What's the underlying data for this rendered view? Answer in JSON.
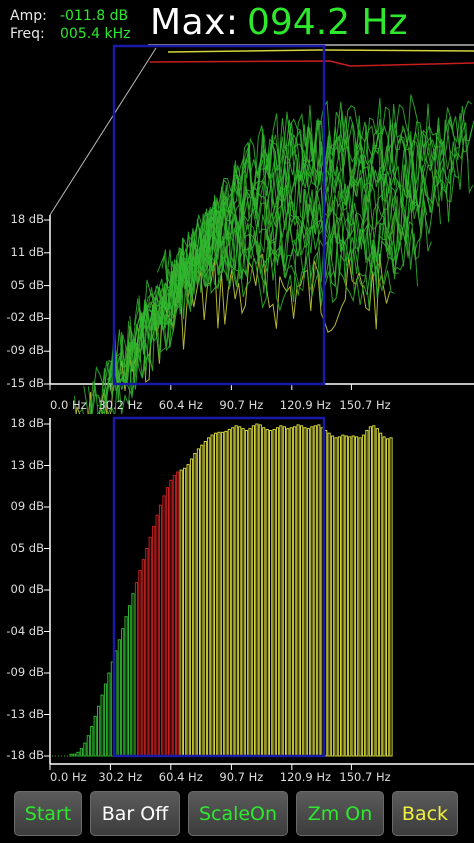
{
  "header": {
    "amp_label": "Amp:",
    "amp_value": "-011.8 dB",
    "freq_label": "Freq:",
    "freq_value": "005.4 kHz",
    "max_label": "Max:",
    "max_value": "094.2 Hz"
  },
  "top_chart": {
    "y_ticks": [
      "18 dB",
      "11 dB",
      "05 dB",
      "-02 dB",
      "-09 dB",
      "-15 dB"
    ],
    "x_ticks": [
      "0.0 Hz",
      "30.2 Hz",
      "60.4 Hz",
      "90.7 Hz",
      "120.9 Hz",
      "150.7 Hz"
    ]
  },
  "bottom_chart": {
    "y_ticks": [
      "18 dB",
      "13 dB",
      "09 dB",
      "05 dB",
      "00 dB",
      "-04 dB",
      "-09 dB",
      "-13 dB",
      "-18 dB"
    ],
    "x_ticks": [
      "0.0 Hz",
      "30.2 Hz",
      "60.4 Hz",
      "90.7 Hz",
      "120.9 Hz",
      "150.7 Hz"
    ]
  },
  "chart_data": {
    "type": "bar",
    "x_unit": "Hz",
    "y_unit": "dB",
    "ylim": [
      -18,
      18
    ],
    "xlim": [
      0,
      170
    ],
    "bins_start_hz": 10,
    "bin_step_hz": 1.72,
    "values": [
      -17.8,
      -17.8,
      -17.6,
      -17.2,
      -16.6,
      -15.8,
      -14.8,
      -13.7,
      -12.6,
      -11.4,
      -10.2,
      -9.0,
      -7.8,
      -6.6,
      -5.4,
      -4.2,
      -2.9,
      -1.7,
      -0.4,
      0.8,
      2.1,
      3.3,
      4.5,
      5.7,
      6.9,
      8.1,
      9.2,
      10.2,
      11.1,
      11.9,
      12.4,
      12.8,
      13.0,
      13.2,
      13.6,
      14.2,
      14.8,
      15.3,
      15.7,
      16.1,
      16.5,
      16.8,
      17.0,
      17.1,
      17.1,
      17.2,
      17.4,
      17.6,
      17.8,
      17.7,
      17.5,
      17.3,
      17.5,
      17.8,
      18.0,
      17.9,
      17.6,
      17.4,
      17.3,
      17.4,
      17.6,
      17.8,
      17.7,
      17.5,
      17.6,
      17.7,
      17.9,
      17.8,
      17.6,
      17.5,
      17.7,
      17.8,
      17.9,
      17.6,
      17.3,
      17.0,
      16.7,
      16.5,
      16.6,
      16.8,
      16.7,
      16.6,
      16.7,
      16.6,
      16.5,
      16.8,
      17.3,
      17.7,
      17.8,
      17.5,
      17.0,
      16.6,
      16.4,
      16.5
    ],
    "colors": {
      "low": "#2db52d",
      "mid": "#c81e1e",
      "high": "#d4d43c",
      "zoom_box": "#1a1aa8",
      "axis": "#ffffff"
    },
    "zoom_range_hz": [
      42,
      122
    ],
    "red_range_hz": [
      42,
      64
    ],
    "grid": false
  },
  "buttons": [
    {
      "label": "Start",
      "color": "#2ee82e"
    },
    {
      "label": "Bar Off",
      "color": "#ffffff"
    },
    {
      "label": "ScaleOn",
      "color": "#2ee82e"
    },
    {
      "label": "Zm On",
      "color": "#2ee82e"
    },
    {
      "label": "Back",
      "color": "#f0f040"
    }
  ]
}
